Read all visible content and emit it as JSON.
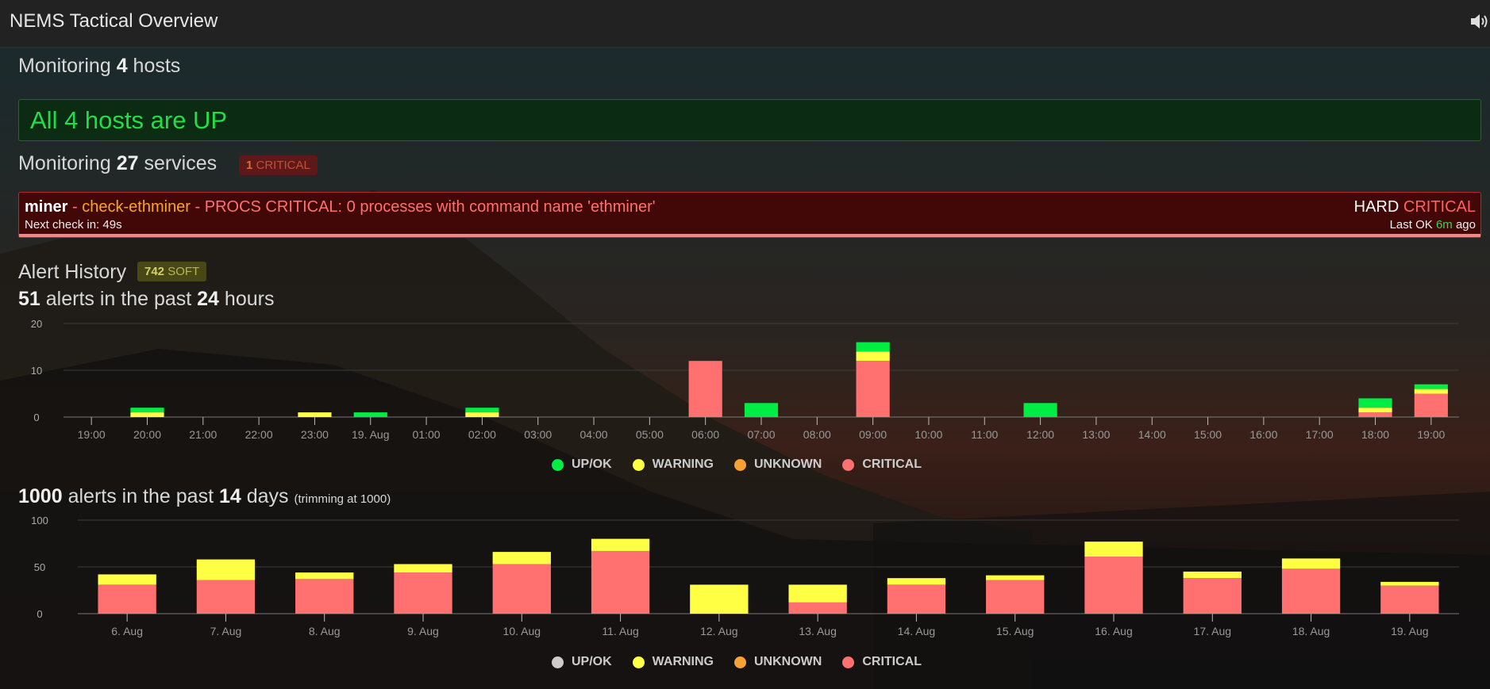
{
  "app": {
    "title": "NEMS Tactical Overview"
  },
  "hosts": {
    "prefix": "Monitoring",
    "count": "4",
    "suffix": "hosts",
    "status_text": "All 4 hosts are UP"
  },
  "services": {
    "prefix": "Monitoring",
    "count": "27",
    "suffix": "services",
    "badge_count": "1",
    "badge_label": "CRITICAL"
  },
  "problem": {
    "host": "miner",
    "sep1": " - ",
    "service": "check-ethminer",
    "sep2": " - ",
    "message": "PROCS CRITICAL: 0 processes with command name 'ethminer'",
    "next_check_label": "Next check in:",
    "next_check_value": "49s",
    "state_type": "HARD",
    "state": "CRITICAL",
    "last_ok_label": "Last OK",
    "last_ok_value": "6m",
    "last_ok_suffix": "ago"
  },
  "alert_history": {
    "title": "Alert History",
    "soft_count": "742",
    "soft_label": "SOFT"
  },
  "day_summary": {
    "count": "51",
    "middle": "alerts in the past",
    "hours": "24",
    "unit": "hours"
  },
  "fortnight_summary": {
    "count": "1000",
    "middle": "alerts in the past",
    "days": "14",
    "unit": "days",
    "note": "(trimming at 1000)"
  },
  "colors": {
    "up": "#00ee44",
    "warning": "#ffff44",
    "unknown": "#f7a135",
    "critical": "#ff7070",
    "up_grey": "#cccccc"
  },
  "legend_24h": [
    {
      "label": "UP/OK",
      "color": "#00ee44"
    },
    {
      "label": "WARNING",
      "color": "#ffff44"
    },
    {
      "label": "UNKNOWN",
      "color": "#f7a135"
    },
    {
      "label": "CRITICAL",
      "color": "#ff7070"
    }
  ],
  "legend_14d": [
    {
      "label": "UP/OK",
      "color": "#cccccc"
    },
    {
      "label": "WARNING",
      "color": "#ffff44"
    },
    {
      "label": "UNKNOWN",
      "color": "#f7a135"
    },
    {
      "label": "CRITICAL",
      "color": "#ff7070"
    }
  ],
  "chart_data": [
    {
      "type": "bar",
      "stacked": true,
      "categories": [
        "19:00",
        "20:00",
        "21:00",
        "22:00",
        "23:00",
        "19. Aug",
        "01:00",
        "02:00",
        "03:00",
        "04:00",
        "05:00",
        "06:00",
        "07:00",
        "08:00",
        "09:00",
        "10:00",
        "11:00",
        "12:00",
        "13:00",
        "14:00",
        "15:00",
        "16:00",
        "17:00",
        "18:00",
        "19:00"
      ],
      "series": [
        {
          "name": "CRITICAL",
          "values": [
            0,
            0,
            0,
            0,
            0,
            0,
            0,
            0,
            0,
            0,
            0,
            12,
            0,
            0,
            12,
            0,
            0,
            0,
            0,
            0,
            0,
            0,
            0,
            1,
            5
          ]
        },
        {
          "name": "UNKNOWN",
          "values": [
            0,
            0,
            0,
            0,
            0,
            0,
            0,
            0,
            0,
            0,
            0,
            0,
            0,
            0,
            0,
            0,
            0,
            0,
            0,
            0,
            0,
            0,
            0,
            0,
            0
          ]
        },
        {
          "name": "WARNING",
          "values": [
            0,
            1,
            0,
            0,
            1,
            0,
            0,
            1,
            0,
            0,
            0,
            0,
            0,
            0,
            2,
            0,
            0,
            0,
            0,
            0,
            0,
            0,
            0,
            1,
            1
          ]
        },
        {
          "name": "UP/OK",
          "values": [
            0,
            1,
            0,
            0,
            0,
            1,
            0,
            1,
            0,
            0,
            0,
            0,
            3,
            0,
            2,
            0,
            0,
            3,
            0,
            0,
            0,
            0,
            0,
            2,
            1
          ]
        }
      ],
      "yticks": [
        0,
        10,
        20
      ],
      "ylim": [
        0,
        20
      ]
    },
    {
      "type": "bar",
      "stacked": true,
      "categories": [
        "6. Aug",
        "7. Aug",
        "8. Aug",
        "9. Aug",
        "10. Aug",
        "11. Aug",
        "12. Aug",
        "13. Aug",
        "14. Aug",
        "15. Aug",
        "16. Aug",
        "17. Aug",
        "18. Aug",
        "19. Aug"
      ],
      "series": [
        {
          "name": "CRITICAL",
          "values": [
            31,
            36,
            37,
            44,
            53,
            67,
            0,
            12,
            31,
            36,
            61,
            38,
            48,
            30
          ]
        },
        {
          "name": "UNKNOWN",
          "values": [
            0,
            0,
            0,
            0,
            0,
            0,
            0,
            0,
            0,
            0,
            0,
            0,
            0,
            0
          ]
        },
        {
          "name": "WARNING",
          "values": [
            11,
            22,
            7,
            9,
            13,
            13,
            31,
            19,
            7,
            5,
            16,
            7,
            11,
            4
          ]
        },
        {
          "name": "UP/OK",
          "values": [
            0,
            0,
            0,
            0,
            0,
            0,
            0,
            0,
            0,
            0,
            0,
            0,
            0,
            0
          ]
        }
      ],
      "yticks": [
        0,
        50,
        100
      ],
      "ylim": [
        0,
        100
      ]
    }
  ]
}
